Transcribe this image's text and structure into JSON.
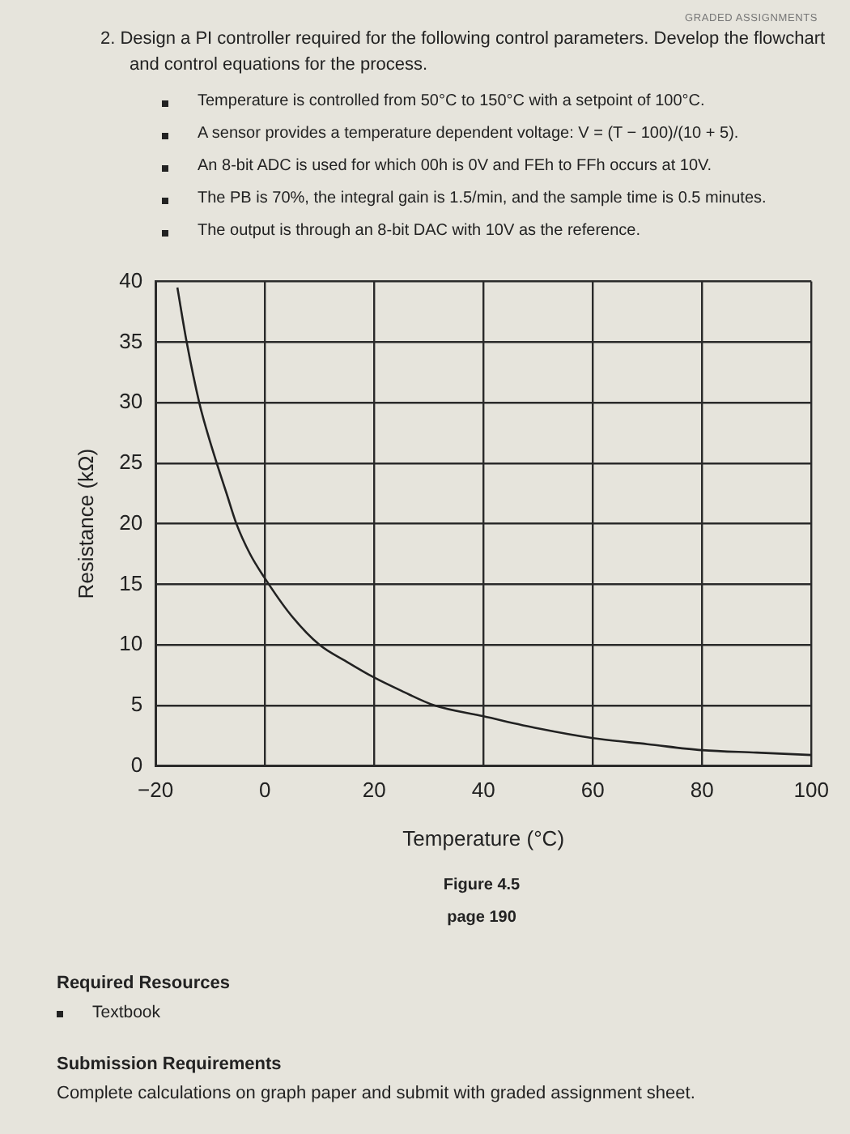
{
  "chart_data": {
    "type": "line",
    "title": "2. Design a PI controller required for the following control parameters. Develop the flowchart and control equations for the process.",
    "xlabel": "Temperature (°C)",
    "ylabel": "Resistance (kΩ)",
    "x": [
      -16,
      -14.3,
      -12,
      -10.5,
      -8.8,
      -7,
      -5.2,
      -2.7,
      0,
      4.7,
      10,
      15,
      20,
      25,
      31,
      40,
      50,
      60,
      70,
      80,
      90,
      100
    ],
    "values": [
      39.5,
      35,
      30,
      27.5,
      25,
      22.5,
      20,
      17.5,
      15.5,
      12.5,
      10,
      8.6,
      7.3,
      6.2,
      5,
      4.1,
      3.1,
      2.3,
      1.8,
      1.3,
      1.1,
      0.9
    ],
    "color": "#222222",
    "xlim": [
      -20,
      100
    ],
    "xticks": [
      {
        "value": -20,
        "label": "−20"
      },
      0,
      20,
      40,
      60,
      80,
      100
    ],
    "ylim": [
      0,
      40
    ],
    "yticks": [
      0,
      5,
      10,
      15,
      20,
      25,
      30,
      35,
      40
    ],
    "grid": true,
    "legend": false,
    "marker": "none",
    "annotations": [
      "GRADED ASSIGNMENTS",
      "Temperature is controlled from 50°C to 150°C with a setpoint of 100°C.",
      "A sensor provides a temperature dependent voltage: V = (T − 100)/(10 + 5).",
      "An 8-bit ADC is used for which 00h is 0V and FEh to FFh occurs at 10V.",
      "The PB is 70%, the integral gain is 1.5/min, and the sample time is 0.5 minutes.",
      "The output is through an 8-bit DAC with 10V as the reference.",
      "Figure 4.5",
      "page 190",
      "Required Resources",
      "Textbook",
      "Submission Requirements",
      "Complete calculations on graph paper and submit with graded assignment sheet."
    ]
  }
}
